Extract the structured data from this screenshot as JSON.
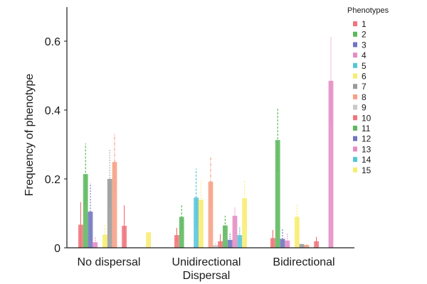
{
  "chart_data": {
    "type": "bar",
    "title": "",
    "xlabel": "",
    "ylabel": "Frequency of phenotype",
    "ylim": [
      0,
      0.7
    ],
    "yticks": [
      0,
      0.2,
      0.4,
      0.6
    ],
    "ytick_labels": [
      "0",
      "0.2",
      "0.4",
      "0.6"
    ],
    "grid": false,
    "categories": [
      "No dispersal",
      "Unidirectional Dispersal",
      "Bidirectional"
    ],
    "category_label_lines": [
      [
        "No dispersal"
      ],
      [
        "Unidirectional",
        "Dispersal"
      ],
      [
        "Bidirectional"
      ]
    ],
    "legend": {
      "title": "Phenotypes",
      "placement": "top-right"
    },
    "series": [
      {
        "name": "1",
        "color": "#f0747c",
        "values": [
          0.067,
          0.037,
          0.028
        ],
        "error_upper": [
          0.133,
          0.058,
          0.052
        ]
      },
      {
        "name": "2",
        "color": "#5cb85c",
        "values": [
          0.214,
          0.09,
          0.313
        ],
        "error_upper": [
          0.303,
          0.125,
          0.404
        ]
      },
      {
        "name": "3",
        "color": "#7274c0",
        "values": [
          0.105,
          0,
          0.026
        ],
        "error_upper": [
          0.188,
          0,
          0.055
        ]
      },
      {
        "name": "4",
        "color": "#e58cc4",
        "values": [
          0.016,
          0,
          0.021
        ],
        "error_upper": [
          0.03,
          0,
          0.042
        ]
      },
      {
        "name": "5",
        "color": "#56c5d8",
        "values": [
          0,
          0.146,
          0
        ],
        "error_upper": [
          0,
          0.23,
          0
        ]
      },
      {
        "name": "6",
        "color": "#f7ed6e",
        "values": [
          0.038,
          0.14,
          0.09
        ],
        "error_upper": [
          0.065,
          0.195,
          0.125
        ]
      },
      {
        "name": "7",
        "color": "#9a9a9a",
        "values": [
          0.2,
          0,
          0.011
        ],
        "error_upper": [
          0.285,
          0,
          0.014
        ]
      },
      {
        "name": "8",
        "color": "#f79f84",
        "values": [
          0.249,
          0.192,
          0.008
        ],
        "error_upper": [
          0.332,
          0.262,
          0.014
        ]
      },
      {
        "name": "9",
        "color": "#c8c8c8",
        "values": [
          0,
          0.008,
          0
        ],
        "error_upper": [
          0,
          0.014,
          0
        ]
      },
      {
        "name": "10",
        "color": "#f0747c",
        "values": [
          0.064,
          0.019,
          0.019
        ],
        "error_upper": [
          0.123,
          0.04,
          0.032
        ]
      },
      {
        "name": "11",
        "color": "#5cb85c",
        "values": [
          0,
          0.065,
          0
        ],
        "error_upper": [
          0,
          0.093,
          0
        ]
      },
      {
        "name": "12",
        "color": "#7274c0",
        "values": [
          0,
          0.023,
          0
        ],
        "error_upper": [
          0,
          0.045,
          0
        ]
      },
      {
        "name": "13",
        "color": "#e58cc4",
        "values": [
          0,
          0.093,
          0.485
        ],
        "error_upper": [
          0,
          0.117,
          0.612
        ]
      },
      {
        "name": "14",
        "color": "#56c5d8",
        "values": [
          0,
          0.037,
          0
        ],
        "error_upper": [
          0,
          0.06,
          0
        ]
      },
      {
        "name": "15",
        "color": "#f7ed6e",
        "values": [
          0.045,
          0.144,
          0
        ],
        "error_upper": [
          0,
          0.198,
          0
        ]
      }
    ]
  }
}
